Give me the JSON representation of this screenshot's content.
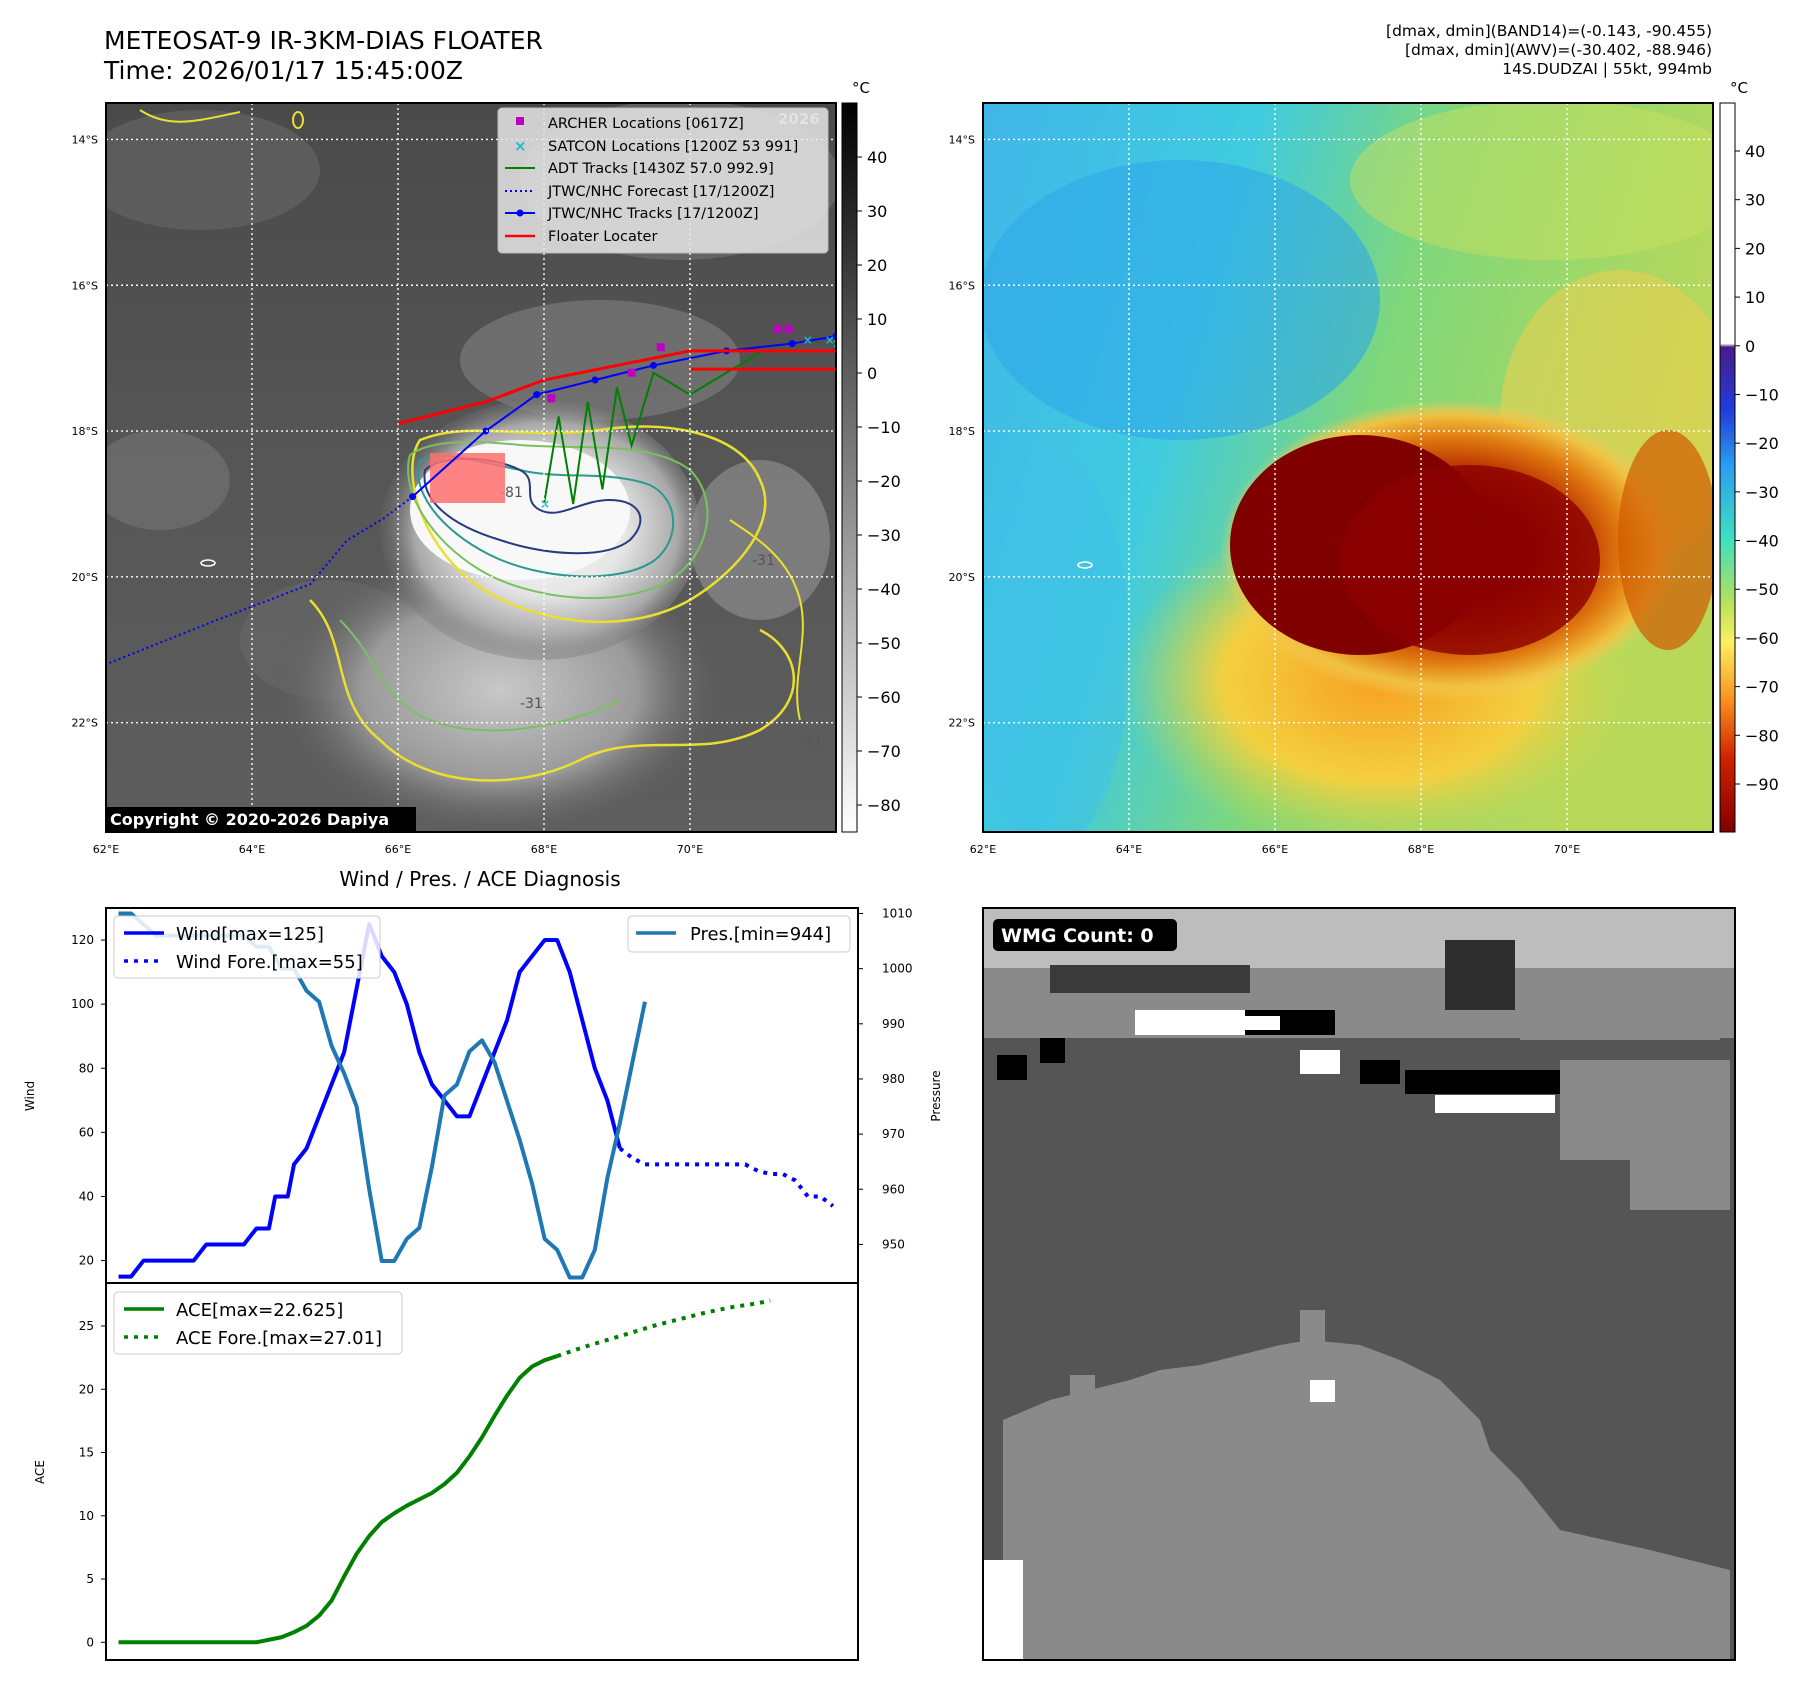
{
  "header": {
    "title_line1": "METEOSAT-9 IR-3KM-DIAS FLOATER",
    "title_line2": "Time: 2026/01/17 15:45:00Z",
    "info_line1": "[dmax, dmin](BAND14)=(-0.143, -90.455)",
    "info_line2": "[dmax, dmin](AWV)=(-30.402, -88.946)",
    "info_line3": "14S.DUDZAI | 55kt, 994mb"
  },
  "map_axes": {
    "lat_labels": [
      "14°S",
      "16°S",
      "18°S",
      "20°S",
      "22°S"
    ],
    "lon_labels": [
      "62°E",
      "64°E",
      "66°E",
      "68°E",
      "70°E"
    ],
    "lon_range": [
      62,
      72
    ],
    "lat_range": [
      -23.5,
      -13.5
    ]
  },
  "ir_panel": {
    "watermark": "Copyright © 2020-2026 Dapiya",
    "faint_watermark": "2026",
    "colorbar_unit": "°C",
    "colorbar_ticks": [
      "40",
      "30",
      "20",
      "10",
      "0",
      "−10",
      "−20",
      "−30",
      "−40",
      "−50",
      "−60",
      "−70",
      "−80"
    ],
    "contour_labels": [
      "-81",
      "-31",
      "-31",
      "-31"
    ],
    "legend": [
      {
        "label": "ARCHER Locations [0617Z]",
        "marker": "square",
        "color": "#c000c0"
      },
      {
        "label": "SATCON Locations [1200Z 53 991]",
        "marker": "x",
        "color": "#17becf"
      },
      {
        "label": "ADT Tracks [1430Z 57.0 992.9]",
        "marker": "line",
        "color": "#008000"
      },
      {
        "label": "JTWC/NHC Forecast [17/1200Z]",
        "marker": "dotted",
        "color": "#0000ff"
      },
      {
        "label": "JTWC/NHC Tracks [17/1200Z]",
        "marker": "line-dot",
        "color": "#0000ff"
      },
      {
        "label": "Floater Locater",
        "marker": "line",
        "color": "#ff0000"
      }
    ]
  },
  "awv_panel": {
    "colorbar_unit": "°C",
    "colorbar_ticks": [
      "40",
      "30",
      "20",
      "10",
      "0",
      "−10",
      "−20",
      "−30",
      "−40",
      "−50",
      "−60",
      "−70",
      "−80",
      "−90"
    ]
  },
  "wmg_panel": {
    "label": "WMG Count: 0"
  },
  "chart_data": [
    {
      "type": "line",
      "title": "Wind / Pres. / ACE Diagnosis",
      "ylabel": "Wind",
      "ylabel_right": "Pressure",
      "ylim": [
        13,
        130
      ],
      "ylim_right": [
        943,
        1011
      ],
      "y_ticks": [
        20,
        40,
        60,
        80,
        100,
        120
      ],
      "y_ticks_right": [
        950,
        960,
        970,
        980,
        990,
        1000,
        1010
      ],
      "legend_left": [
        "Wind[max=125]",
        "Wind Fore.[max=55]"
      ],
      "legend_right": [
        "Pres.[min=944]"
      ],
      "series": [
        {
          "name": "Wind[max=125]",
          "color": "#0000ff",
          "style": "solid",
          "points": [
            [
              1,
              15
            ],
            [
              2,
              15
            ],
            [
              3,
              20
            ],
            [
              4,
              20
            ],
            [
              5,
              20
            ],
            [
              6,
              20
            ],
            [
              7,
              20
            ],
            [
              8,
              25
            ],
            [
              9,
              25
            ],
            [
              10,
              25
            ],
            [
              11,
              25
            ],
            [
              12,
              30
            ],
            [
              13,
              30
            ],
            [
              13.5,
              40
            ],
            [
              14.5,
              40
            ],
            [
              15,
              50
            ],
            [
              16,
              55
            ],
            [
              17,
              65
            ],
            [
              18,
              75
            ],
            [
              19,
              85
            ],
            [
              20,
              105
            ],
            [
              21,
              125
            ],
            [
              22,
              115
            ],
            [
              23,
              110
            ],
            [
              24,
              100
            ],
            [
              25,
              85
            ],
            [
              26,
              75
            ],
            [
              27,
              70
            ],
            [
              28,
              65
            ],
            [
              29,
              65
            ],
            [
              30,
              75
            ],
            [
              31,
              85
            ],
            [
              32,
              95
            ],
            [
              33,
              110
            ],
            [
              34,
              115
            ],
            [
              35,
              120
            ],
            [
              36,
              120
            ],
            [
              37,
              110
            ],
            [
              38,
              95
            ],
            [
              39,
              80
            ],
            [
              40,
              70
            ],
            [
              41,
              55
            ]
          ]
        },
        {
          "name": "Wind Fore.[max=55]",
          "color": "#0000ff",
          "style": "dotted",
          "points": [
            [
              41,
              55
            ],
            [
              42,
              52
            ],
            [
              43,
              50
            ],
            [
              44,
              50
            ],
            [
              45,
              50
            ],
            [
              46,
              50
            ],
            [
              47,
              50
            ],
            [
              48,
              50
            ],
            [
              49,
              50
            ],
            [
              50,
              50
            ],
            [
              51,
              50
            ],
            [
              52,
              48
            ],
            [
              53,
              47
            ],
            [
              54,
              47
            ],
            [
              55,
              45
            ],
            [
              56,
              40
            ],
            [
              57,
              40
            ],
            [
              58,
              37
            ]
          ]
        },
        {
          "name": "Pres.[min=944]",
          "color": "#1f77b4",
          "style": "solid",
          "axis": "right",
          "points": [
            [
              1,
              1010
            ],
            [
              2,
              1010
            ],
            [
              3,
              1008
            ],
            [
              4,
              1006
            ],
            [
              5,
              1006
            ],
            [
              6,
              1006
            ],
            [
              7,
              1006
            ],
            [
              8,
              1006
            ],
            [
              9,
              1006
            ],
            [
              10,
              1006
            ],
            [
              11,
              1006
            ],
            [
              12,
              1004
            ],
            [
              13,
              1004
            ],
            [
              14,
              1000
            ],
            [
              15,
              1000
            ],
            [
              16,
              996
            ],
            [
              17,
              994
            ],
            [
              18,
              986
            ],
            [
              19,
              981
            ],
            [
              20,
              975
            ],
            [
              21,
              960
            ],
            [
              22,
              947
            ],
            [
              23,
              947
            ],
            [
              24,
              951
            ],
            [
              25,
              953
            ],
            [
              26,
              964
            ],
            [
              27,
              977
            ],
            [
              28,
              979
            ],
            [
              29,
              985
            ],
            [
              30,
              987
            ],
            [
              31,
              983
            ],
            [
              32,
              976
            ],
            [
              33,
              969
            ],
            [
              34,
              961
            ],
            [
              35,
              951
            ],
            [
              36,
              949
            ],
            [
              37,
              944
            ],
            [
              38,
              944
            ],
            [
              39,
              949
            ],
            [
              40,
              962
            ],
            [
              41,
              972
            ],
            [
              42,
              983
            ],
            [
              43,
              994
            ]
          ]
        }
      ]
    },
    {
      "type": "line",
      "ylabel": "ACE",
      "ylim": [
        -1.4,
        28.4
      ],
      "y_ticks": [
        0,
        5,
        10,
        15,
        20,
        25
      ],
      "legend": [
        "ACE[max=22.625]",
        "ACE Fore.[max=27.01]"
      ],
      "series": [
        {
          "name": "ACE[max=22.625]",
          "color": "#008000",
          "style": "solid",
          "points": [
            [
              1,
              0
            ],
            [
              5,
              0
            ],
            [
              10,
              0
            ],
            [
              12,
              0
            ],
            [
              13,
              0.2
            ],
            [
              14,
              0.4
            ],
            [
              15,
              0.8
            ],
            [
              16,
              1.3
            ],
            [
              17,
              2.1
            ],
            [
              18,
              3.3
            ],
            [
              19,
              5.2
            ],
            [
              20,
              7.0
            ],
            [
              21,
              8.4
            ],
            [
              22,
              9.5
            ],
            [
              23,
              10.2
            ],
            [
              24,
              10.8
            ],
            [
              25,
              11.3
            ],
            [
              26,
              11.8
            ],
            [
              27,
              12.5
            ],
            [
              28,
              13.4
            ],
            [
              29,
              14.7
            ],
            [
              30,
              16.2
            ],
            [
              31,
              17.9
            ],
            [
              32,
              19.5
            ],
            [
              33,
              20.9
            ],
            [
              34,
              21.8
            ],
            [
              35,
              22.3
            ],
            [
              36,
              22.625
            ]
          ]
        },
        {
          "name": "ACE Fore.[max=27.01]",
          "color": "#008000",
          "style": "dotted",
          "points": [
            [
              36,
              22.625
            ],
            [
              38,
              23.3
            ],
            [
              40,
              23.9
            ],
            [
              42,
              24.5
            ],
            [
              44,
              25.1
            ],
            [
              46,
              25.6
            ],
            [
              48,
              26.1
            ],
            [
              50,
              26.5
            ],
            [
              52,
              26.8
            ],
            [
              53,
              27.01
            ]
          ]
        }
      ]
    }
  ]
}
